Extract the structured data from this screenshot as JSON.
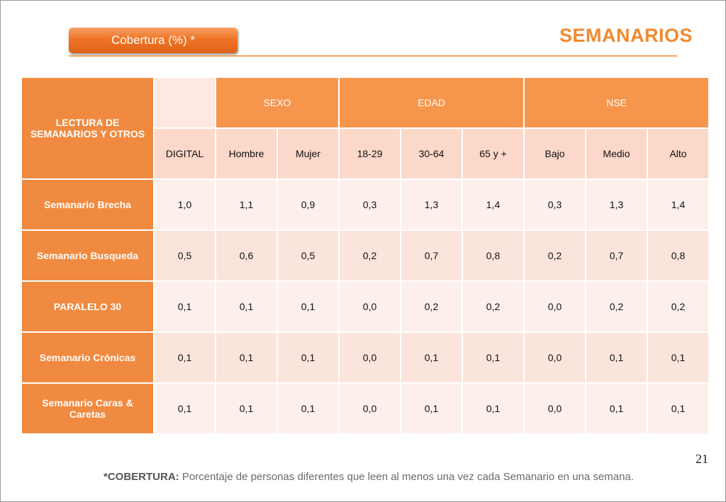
{
  "header": {
    "badge": "Cobertura (%) *",
    "title": "SEMANARIOS"
  },
  "table": {
    "corner_label": "LECTURA DE SEMANARIOS Y OTROS",
    "groups": {
      "sexo": "SEXO",
      "edad": "EDAD",
      "nse": "NSE"
    },
    "columns": [
      "DIGITAL",
      "Hombre",
      "Mujer",
      "18-29",
      "30-64",
      "65 y +",
      "Bajo",
      "Medio",
      "Alto"
    ],
    "rows": [
      {
        "label": "Semanario Brecha",
        "values": [
          "1,0",
          "1,1",
          "0,9",
          "0,3",
          "1,3",
          "1,4",
          "0,3",
          "1,3",
          "1,4"
        ]
      },
      {
        "label": "Semanario Busqueda",
        "values": [
          "0,5",
          "0,6",
          "0,5",
          "0,2",
          "0,7",
          "0,8",
          "0,2",
          "0,7",
          "0,8"
        ]
      },
      {
        "label": "PARALELO 30",
        "values": [
          "0,1",
          "0,1",
          "0,1",
          "0,0",
          "0,2",
          "0,2",
          "0,0",
          "0,2",
          "0,2"
        ]
      },
      {
        "label": "Semanario Crónicas",
        "values": [
          "0,1",
          "0,1",
          "0,1",
          "0,0",
          "0,1",
          "0,1",
          "0,0",
          "0,1",
          "0,1"
        ]
      },
      {
        "label": "Semanario Caras & Caretas",
        "values": [
          "0,1",
          "0,1",
          "0,1",
          "0,0",
          "0,1",
          "0,1",
          "0,0",
          "0,1",
          "0,1"
        ]
      }
    ]
  },
  "page_number": "21",
  "footnote": {
    "term": "*COBERTURA:",
    "text": " Porcentaje de personas diferentes que leen al menos una vez cada Semanario en una semana."
  },
  "colors": {
    "accent": "#f08a30",
    "header_orange": "#f6964d",
    "row_label": "#f08a40",
    "cell_light": "#fdf0ec",
    "cell_medium": "#fbe4dc"
  }
}
